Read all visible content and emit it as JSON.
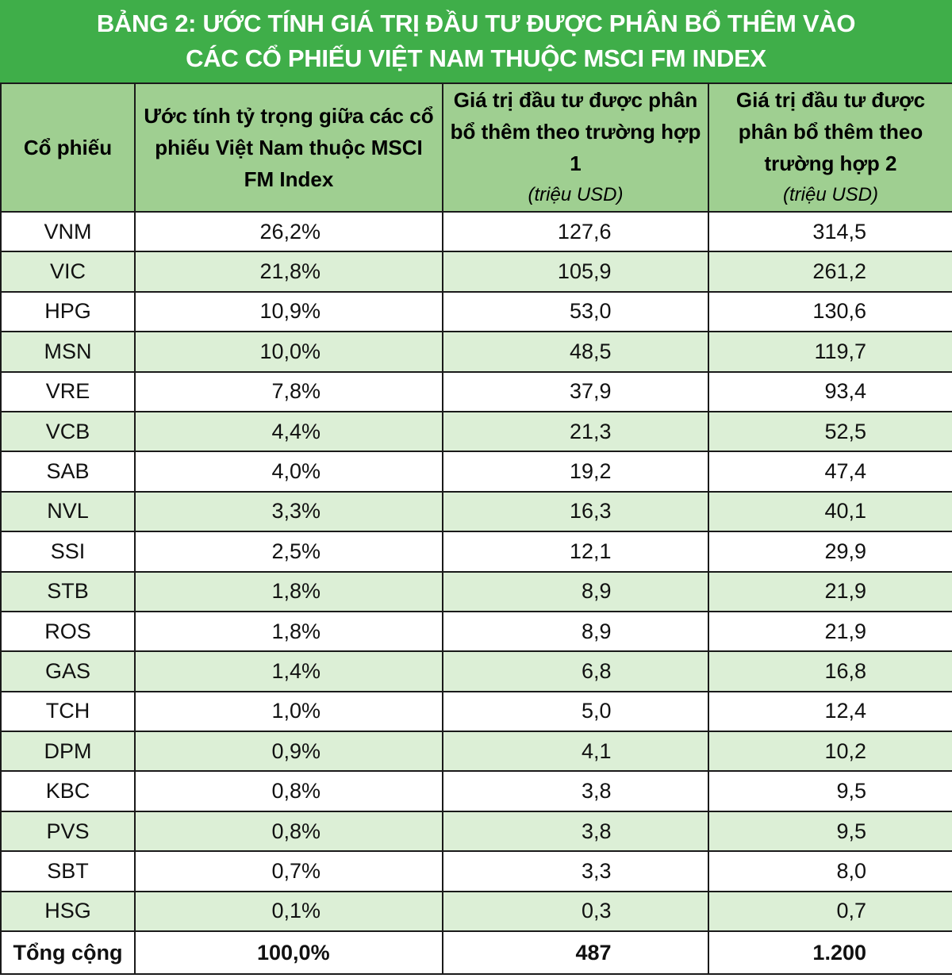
{
  "title": {
    "line1": "BẢNG 2: ƯỚC TÍNH GIÁ TRỊ ĐẦU TƯ ĐƯỢC PHÂN BỔ THÊM VÀO",
    "line2": "CÁC CỔ PHIẾU VIỆT NAM THUỘC MSCI FM INDEX"
  },
  "columns": {
    "stock": "Cổ phiếu",
    "weight": "Ước tính tỷ trọng giữa các cổ phiếu Việt Nam thuộc MSCI FM Index",
    "case1": "Giá trị đầu tư được phân bổ thêm theo trường hợp 1",
    "case1_unit": "(triệu USD)",
    "case2": "Giá trị đầu tư được phân bổ thêm theo trường hợp 2",
    "case2_unit": "(triệu USD)"
  },
  "rows": [
    {
      "stock": "VNM",
      "weight": "26,2%",
      "case1": "127,6",
      "case2": "314,5"
    },
    {
      "stock": "VIC",
      "weight": "21,8%",
      "case1": "105,9",
      "case2": "261,2"
    },
    {
      "stock": "HPG",
      "weight": "10,9%",
      "case1": "53,0",
      "case2": "130,6"
    },
    {
      "stock": "MSN",
      "weight": "10,0%",
      "case1": "48,5",
      "case2": "119,7"
    },
    {
      "stock": "VRE",
      "weight": "7,8%",
      "case1": "37,9",
      "case2": "93,4"
    },
    {
      "stock": "VCB",
      "weight": "4,4%",
      "case1": "21,3",
      "case2": "52,5"
    },
    {
      "stock": "SAB",
      "weight": "4,0%",
      "case1": "19,2",
      "case2": "47,4"
    },
    {
      "stock": "NVL",
      "weight": "3,3%",
      "case1": "16,3",
      "case2": "40,1"
    },
    {
      "stock": "SSI",
      "weight": "2,5%",
      "case1": "12,1",
      "case2": "29,9"
    },
    {
      "stock": "STB",
      "weight": "1,8%",
      "case1": "8,9",
      "case2": "21,9"
    },
    {
      "stock": "ROS",
      "weight": "1,8%",
      "case1": "8,9",
      "case2": "21,9"
    },
    {
      "stock": "GAS",
      "weight": "1,4%",
      "case1": "6,8",
      "case2": "16,8"
    },
    {
      "stock": "TCH",
      "weight": "1,0%",
      "case1": "5,0",
      "case2": "12,4"
    },
    {
      "stock": "DPM",
      "weight": "0,9%",
      "case1": "4,1",
      "case2": "10,2"
    },
    {
      "stock": "KBC",
      "weight": "0,8%",
      "case1": "3,8",
      "case2": "9,5"
    },
    {
      "stock": "PVS",
      "weight": "0,8%",
      "case1": "3,8",
      "case2": "9,5"
    },
    {
      "stock": "SBT",
      "weight": "0,7%",
      "case1": "3,3",
      "case2": "8,0"
    },
    {
      "stock": "HSG",
      "weight": "0,1%",
      "case1": "0,3",
      "case2": "0,7"
    }
  ],
  "total": {
    "stock": "Tổng cộng",
    "weight": "100,0%",
    "case1": "487",
    "case2": "1.200"
  },
  "colors": {
    "title_bg": "#3fae49",
    "header_bg": "#9fcf91",
    "alt_row_bg": "#dcefd6"
  }
}
